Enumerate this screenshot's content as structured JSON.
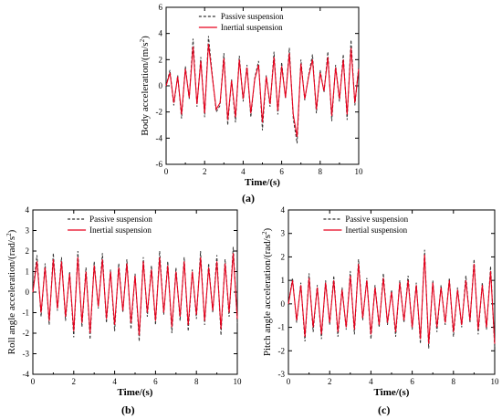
{
  "chart_data": [
    {
      "type": "line",
      "panel_label": "(a)",
      "xlabel": "Time/(s)",
      "ylabel": "Body acceleration/(m/s",
      "ylabel_sup": "2",
      "ylabel_tail": ")",
      "xlim": [
        0,
        10
      ],
      "ylim": [
        -6,
        6
      ],
      "x_ticks": [
        0,
        2,
        4,
        6,
        8,
        10
      ],
      "y_ticks": [
        -6,
        -4,
        -2,
        0,
        2,
        4,
        6
      ],
      "legend_position": "top-center",
      "grid": false,
      "x": [
        0,
        0.2,
        0.4,
        0.6,
        0.8,
        1,
        1.2,
        1.4,
        1.6,
        1.8,
        2,
        2.2,
        2.4,
        2.6,
        2.8,
        3,
        3.2,
        3.4,
        3.6,
        3.8,
        4,
        4.2,
        4.4,
        4.6,
        4.8,
        5,
        5.2,
        5.4,
        5.6,
        5.8,
        6,
        6.2,
        6.4,
        6.6,
        6.8,
        7,
        7.2,
        7.4,
        7.6,
        7.8,
        8,
        8.2,
        8.4,
        8.6,
        8.8,
        9,
        9.2,
        9.4,
        9.6,
        9.8,
        10
      ],
      "series": [
        {
          "name": "Passive suspension",
          "color": "#333333",
          "dash": "3,2",
          "values": [
            0,
            1.2,
            -1.5,
            0.8,
            -2.5,
            1.5,
            -1,
            3.6,
            -1.6,
            2.2,
            -2.4,
            3.8,
            0.8,
            -2,
            -1.5,
            2.5,
            -3,
            0.5,
            -2.8,
            2.3,
            -1.2,
            1.6,
            -2.4,
            0.6,
            1.9,
            -3.4,
            0.8,
            -1.6,
            2.6,
            -2.2,
            1.8,
            -1,
            2.9,
            -2.5,
            -4.4,
            2,
            -1.1,
            0.8,
            2.4,
            -2.1,
            1.2,
            -0.5,
            2.6,
            -2.7,
            1.6,
            -1.2,
            2.4,
            -2.6,
            3.5,
            -1.5,
            1.5
          ]
        },
        {
          "name": "Inertial suspension",
          "color": "#e8001c",
          "dash": "",
          "values": [
            0,
            1,
            -1.3,
            0.7,
            -2.2,
            1.3,
            -0.9,
            3,
            -1.4,
            1.9,
            -2.1,
            3.2,
            0.7,
            -1.8,
            -1.3,
            2.1,
            -2.6,
            0.4,
            -2.4,
            2,
            -1,
            1.4,
            -2.1,
            0.5,
            1.6,
            -2.8,
            0.7,
            -1.4,
            2.2,
            -1.9,
            1.5,
            -0.9,
            2.5,
            -2.2,
            -3.9,
            1.7,
            -1,
            0.7,
            2,
            -1.8,
            1,
            -0.4,
            2.2,
            -2.3,
            1.4,
            -1,
            2,
            -2.2,
            2.9,
            -1.3,
            1.3
          ]
        }
      ]
    },
    {
      "type": "line",
      "panel_label": "(b)",
      "xlabel": "Time/(s)",
      "ylabel": "Roll angle acceleration/(rad/s",
      "ylabel_sup": "2",
      "ylabel_tail": ")",
      "xlim": [
        0,
        10
      ],
      "ylim": [
        -4,
        4
      ],
      "x_ticks": [
        0,
        2,
        4,
        6,
        8,
        10
      ],
      "y_ticks": [
        -4,
        -3,
        -2,
        -1,
        0,
        1,
        2,
        3,
        4
      ],
      "legend_position": "top-center",
      "grid": false,
      "x": [
        0,
        0.2,
        0.4,
        0.6,
        0.8,
        1,
        1.2,
        1.4,
        1.6,
        1.8,
        2,
        2.2,
        2.4,
        2.6,
        2.8,
        3,
        3.2,
        3.4,
        3.6,
        3.8,
        4,
        4.2,
        4.4,
        4.6,
        4.8,
        5,
        5.2,
        5.4,
        5.6,
        5.8,
        6,
        6.2,
        6.4,
        6.6,
        6.8,
        7,
        7.2,
        7.4,
        7.6,
        7.8,
        8,
        8.2,
        8.4,
        8.6,
        8.8,
        9,
        9.2,
        9.4,
        9.6,
        9.8,
        10
      ],
      "series": [
        {
          "name": "Passive suspension",
          "color": "#333333",
          "dash": "3,2",
          "values": [
            0,
            1.8,
            -1.2,
            1.4,
            -1.6,
            1.9,
            -0.9,
            1.7,
            -1.4,
            1,
            -2.2,
            2,
            -1.7,
            1.2,
            -2.3,
            1.5,
            -0.8,
            1.9,
            -1.5,
            1.1,
            -1.9,
            1.4,
            -1,
            1.6,
            -1.8,
            0.9,
            -2.4,
            1.7,
            -1.2,
            1.3,
            -1.6,
            2,
            -1.1,
            1.5,
            -2,
            1.2,
            -1.4,
            1.7,
            -1.9,
            1.1,
            -1.3,
            2,
            -1.6,
            1.4,
            -1,
            1.8,
            -2.1,
            1.6,
            -1.2,
            2.2,
            -1.5
          ]
        },
        {
          "name": "Inertial suspension",
          "color": "#e8001c",
          "dash": "",
          "values": [
            0,
            1.5,
            -1,
            1.2,
            -1.4,
            1.6,
            -0.8,
            1.5,
            -1.2,
            0.9,
            -1.9,
            1.7,
            -1.5,
            1,
            -2,
            1.3,
            -0.7,
            1.6,
            -1.3,
            1,
            -1.6,
            1.2,
            -0.9,
            1.4,
            -1.5,
            0.8,
            -2.1,
            1.5,
            -1,
            1.1,
            -1.4,
            1.7,
            -1,
            1.3,
            -1.7,
            1,
            -1.2,
            1.5,
            -1.6,
            1,
            -1.1,
            1.7,
            -1.4,
            1.2,
            -0.9,
            1.5,
            -1.8,
            1.4,
            -1,
            1.9,
            -1.3
          ]
        }
      ]
    },
    {
      "type": "line",
      "panel_label": "(c)",
      "xlabel": "Time/(s)",
      "ylabel": "Pitch angle acceleration/(rad/s",
      "ylabel_sup": "2",
      "ylabel_tail": ")",
      "xlim": [
        0,
        10
      ],
      "ylim": [
        -3,
        4
      ],
      "x_ticks": [
        0,
        2,
        4,
        6,
        8,
        10
      ],
      "y_ticks": [
        -3,
        -2,
        -1,
        0,
        1,
        2,
        3,
        4
      ],
      "legend_position": "top-center",
      "grid": false,
      "x": [
        0,
        0.2,
        0.4,
        0.6,
        0.8,
        1,
        1.2,
        1.4,
        1.6,
        1.8,
        2,
        2.2,
        2.4,
        2.6,
        2.8,
        3,
        3.2,
        3.4,
        3.6,
        3.8,
        4,
        4.2,
        4.4,
        4.6,
        4.8,
        5,
        5.2,
        5.4,
        5.6,
        5.8,
        6,
        6.2,
        6.4,
        6.6,
        6.8,
        7,
        7.2,
        7.4,
        7.6,
        7.8,
        8,
        8.2,
        8.4,
        8.6,
        8.8,
        9,
        9.2,
        9.4,
        9.6,
        9.8,
        10
      ],
      "series": [
        {
          "name": "Passive suspension",
          "color": "#333333",
          "dash": "3,2",
          "values": [
            0,
            1.1,
            -0.8,
            0.9,
            -1.6,
            1.3,
            -1.2,
            0.8,
            -1.5,
            1,
            -0.9,
            1.2,
            -1.4,
            0.7,
            -1.1,
            1.4,
            -1.3,
            1.9,
            -0.7,
            1.1,
            -1.5,
            0.8,
            -1,
            1.3,
            -0.9,
            0.6,
            -1.4,
            1,
            -0.8,
            1.2,
            -1.1,
            0.9,
            -1.7,
            2.3,
            -1.9,
            1,
            -1.2,
            0.8,
            -0.9,
            1.1,
            -1.4,
            0.7,
            -1,
            1.2,
            -0.8,
            1.9,
            -1.3,
            0.9,
            -1.1,
            1.6,
            -1.9
          ]
        },
        {
          "name": "Inertial suspension",
          "color": "#e8001c",
          "dash": "",
          "values": [
            0,
            1,
            -0.7,
            0.8,
            -1.4,
            1.1,
            -1,
            0.7,
            -1.3,
            0.9,
            -0.8,
            1,
            -1.2,
            0.6,
            -1,
            1.2,
            -1.1,
            1.7,
            -0.6,
            1,
            -1.3,
            0.7,
            -0.9,
            1.1,
            -0.8,
            0.5,
            -1.2,
            0.9,
            -0.7,
            1,
            -1,
            0.8,
            -1.5,
            2.1,
            -1.7,
            0.9,
            -1,
            0.7,
            -0.8,
            1,
            -1.2,
            0.6,
            -0.9,
            1,
            -0.7,
            1.7,
            -1.1,
            0.8,
            -1,
            1.4,
            -1.7
          ]
        }
      ]
    }
  ]
}
